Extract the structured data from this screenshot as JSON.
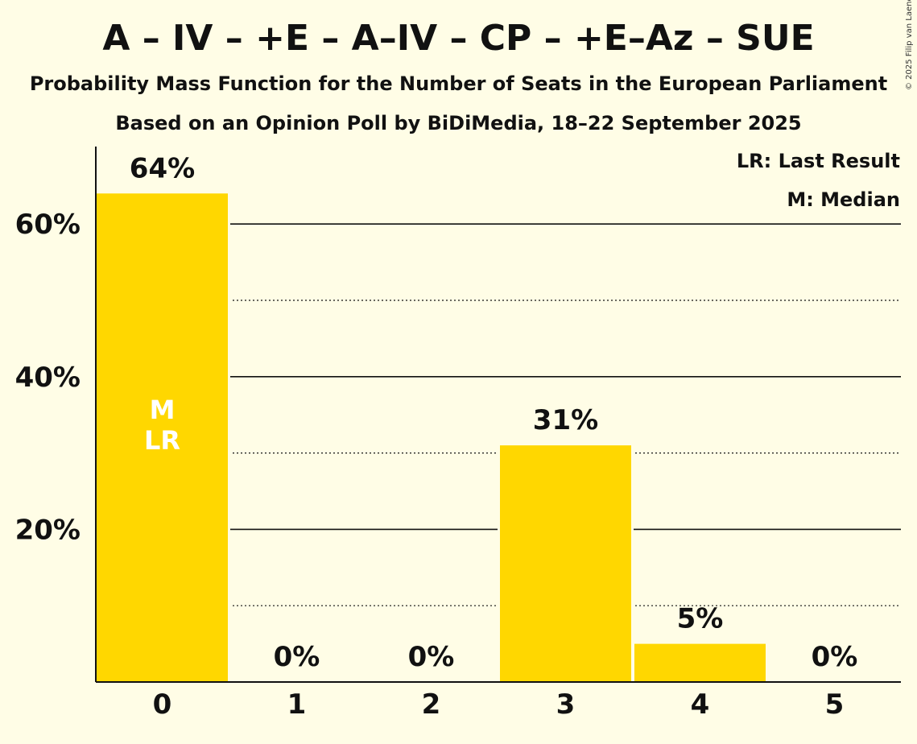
{
  "header": {
    "title": "A – IV – +E – A–IV – CP – +E–Az – SUE",
    "subtitle": "Probability Mass Function for the Number of Seats in the European Parliament",
    "source_line": "Based on an Opinion Poll by BiDiMedia, 18–22 September 2025",
    "copyright": "© 2025 Filip van Laenen"
  },
  "legend": {
    "last_result": "LR: Last Result",
    "median": "M: Median"
  },
  "chart_data": {
    "type": "bar",
    "categories": [
      "0",
      "1",
      "2",
      "3",
      "4",
      "5"
    ],
    "values": [
      64,
      0,
      0,
      31,
      5,
      0
    ],
    "data_labels": [
      "64%",
      "0%",
      "0%",
      "31%",
      "5%",
      "0%"
    ],
    "y_ticks": [
      20,
      40,
      60
    ],
    "y_tick_labels": [
      "20%",
      "40%",
      "60%"
    ],
    "ylim": [
      0,
      70
    ],
    "minor_gridlines": [
      10,
      30,
      50
    ],
    "bar_color": "#ffd700",
    "marker_bar_index": 0,
    "marker_labels": [
      "M",
      "LR"
    ],
    "xlabel": "",
    "ylabel": ""
  }
}
